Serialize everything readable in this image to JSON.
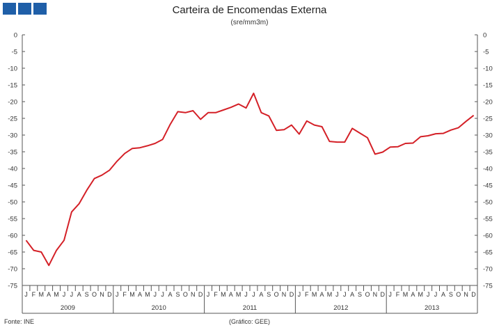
{
  "header": {
    "title": "Carteira de Encomendas  Externa",
    "subtitle": "(sre/mm3m)"
  },
  "footer": {
    "source": "Fonte:  INE",
    "credit": "(Gráfico:  GEE)"
  },
  "colors": {
    "line": "#d42027",
    "axis": "#555555",
    "logo": "#1f5fa8"
  },
  "chart_data": {
    "type": "line",
    "title": "Carteira de Encomendas  Externa",
    "subtitle": "(sre/mm3m)",
    "ylim": [
      -75,
      0
    ],
    "yticks": [
      0,
      -5,
      -10,
      -15,
      -20,
      -25,
      -30,
      -35,
      -40,
      -45,
      -50,
      -55,
      -60,
      -65,
      -70,
      -75
    ],
    "y_axes": "left and right",
    "grid": false,
    "month_labels": [
      "J",
      "F",
      "M",
      "A",
      "M",
      "J",
      "J",
      "A",
      "S",
      "O",
      "N",
      "D"
    ],
    "years": [
      "2009",
      "2010",
      "2011",
      "2012",
      "2013"
    ],
    "series": [
      {
        "values": [
          -61.5,
          -64.5,
          -65,
          -69,
          -64.5,
          -61.5,
          -53,
          -50.5,
          -46.5,
          -43,
          -42,
          -40.5,
          -37.8,
          -35.5,
          -34,
          -33.8,
          -33.2,
          -32.5,
          -31.3,
          -26.8,
          -23,
          -23.3,
          -22.7,
          -25.3,
          -23.3,
          -23.3,
          -22.5,
          -21.7,
          -20.7,
          -21.9,
          -17.5,
          -23.3,
          -24.3,
          -28.6,
          -28.4,
          -27,
          -29.7,
          -25.8,
          -27,
          -27.5,
          -31.9,
          -32.1,
          -32.1,
          -28,
          -29.4,
          -30.8,
          -35.7,
          -35.1,
          -33.6,
          -33.5,
          -32.5,
          -32.4,
          -30.5,
          -30.2,
          -29.6,
          -29.5,
          -28.5,
          -27.8,
          -25.9,
          -24.1
        ]
      }
    ]
  }
}
